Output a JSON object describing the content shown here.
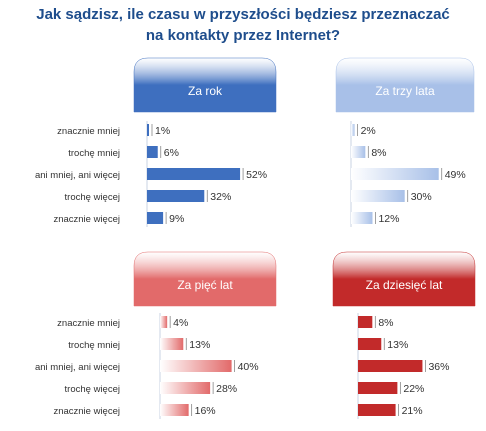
{
  "title_line1": "Jak sądzisz, ile czasu w przyszłości będziesz przeznaczać",
  "title_line2": "na kontakty przez Internet?",
  "colors": {
    "title": "#1e4d8c",
    "blue_dark": "#3e6fbf",
    "blue_light": "#a8c0e8",
    "red_light": "#e26a6a",
    "red_dark": "#c22a2a",
    "text": "#333333"
  },
  "chart_data": [
    {
      "type": "bar",
      "title": "Za rok",
      "categories": [
        "znacznie mniej",
        "trochę mniej",
        "ani mniej, ani więcej",
        "trochę więcej",
        "znacznie więcej"
      ],
      "values": [
        1,
        6,
        52,
        32,
        9
      ],
      "labels": [
        "1%",
        "6%",
        "52%",
        "32%",
        "9%"
      ],
      "unit": "%"
    },
    {
      "type": "bar",
      "title": "Za trzy lata",
      "categories": [
        "znacznie mniej",
        "trochę mniej",
        "ani mniej, ani więcej",
        "trochę więcej",
        "znacznie więcej"
      ],
      "values": [
        2,
        8,
        49,
        30,
        12
      ],
      "labels": [
        "2%",
        "8%",
        "49%",
        "30%",
        "12%"
      ],
      "unit": "%"
    },
    {
      "type": "bar",
      "title": "Za pięć lat",
      "categories": [
        "znacznie mniej",
        "trochę mniej",
        "ani mniej, ani więcej",
        "trochę więcej",
        "znacznie więcej"
      ],
      "values": [
        4,
        13,
        40,
        28,
        16
      ],
      "labels": [
        "4%",
        "13%",
        "40%",
        "28%",
        "16%"
      ],
      "unit": "%"
    },
    {
      "type": "bar",
      "title": "Za dziesięć lat",
      "categories": [
        "znacznie mniej",
        "trochę mniej",
        "ani mniej, ani więcej",
        "trochę więcej",
        "znacznie więcej"
      ],
      "values": [
        8,
        13,
        36,
        22,
        21
      ],
      "labels": [
        "8%",
        "13%",
        "36%",
        "22%",
        "21%"
      ],
      "unit": "%"
    }
  ]
}
